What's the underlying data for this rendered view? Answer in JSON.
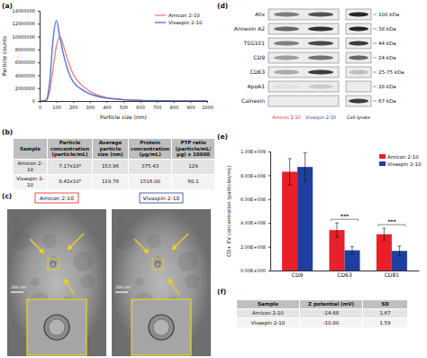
{
  "chart_data": [
    {
      "type": "line",
      "x_label": "Particle size (nm)",
      "y_label": "Particle counts",
      "x": [
        0,
        20,
        40,
        60,
        80,
        100,
        120,
        140,
        160,
        180,
        200,
        250,
        300,
        350,
        400,
        450,
        500,
        600,
        700,
        800,
        900,
        1000
      ],
      "series": [
        {
          "name": "Amicon 2-10",
          "color": "#ef7b7b",
          "values": [
            0,
            0,
            100000,
            1500000,
            5000000,
            8500000,
            10000000,
            8800000,
            7000000,
            5500000,
            4200000,
            2500000,
            1500000,
            900000,
            550000,
            350000,
            220000,
            100000,
            50000,
            20000,
            10000,
            0
          ]
        },
        {
          "name": "Vivaspin 2-10",
          "color": "#4b6fd6",
          "values": [
            0,
            0,
            200000,
            3000000,
            9500000,
            12500000,
            10000000,
            7500000,
            5500000,
            4000000,
            3000000,
            1800000,
            1100000,
            700000,
            450000,
            300000,
            200000,
            100000,
            50000,
            20000,
            10000,
            0
          ]
        }
      ],
      "xlim": [
        0,
        1000
      ],
      "xticks": [
        0,
        100,
        200,
        300,
        400,
        500,
        600,
        700,
        800,
        900,
        1000
      ],
      "ylim": [
        0,
        14000000
      ],
      "yticks": [
        0,
        2000000,
        4000000,
        6000000,
        8000000,
        10000000,
        12000000,
        14000000
      ],
      "legend": "upper right"
    },
    {
      "type": "bar",
      "y_label": "CD+ EV concentration (particles/mL)",
      "categories": [
        "CD9",
        "CD63",
        "CD81"
      ],
      "series": [
        {
          "name": "Amicon 2-10",
          "color": "#e8202a",
          "values": [
            830000000,
            340000000,
            305000000
          ],
          "errors": [
            110000000,
            60000000,
            50000000
          ]
        },
        {
          "name": "Vivaspin 2-10",
          "color": "#1f3fa0",
          "values": [
            870000000,
            170000000,
            165000000
          ],
          "errors": [
            120000000,
            30000000,
            40000000
          ]
        }
      ],
      "ylim": [
        0,
        1000000000
      ],
      "yticks": [
        {
          "value": 0,
          "label": "0.00E+000"
        },
        {
          "value": 200000000,
          "label": "2.00E+008"
        },
        {
          "value": 400000000,
          "label": "4.00E+008"
        },
        {
          "value": 600000000,
          "label": "6.00E+008"
        },
        {
          "value": 800000000,
          "label": "8.00E+008"
        },
        {
          "value": 1000000000,
          "label": "1.00E+009"
        }
      ],
      "legend": "upper right",
      "annotations": [
        {
          "text": "***",
          "category": "CD63"
        },
        {
          "text": "***",
          "category": "CD81"
        }
      ]
    }
  ],
  "panel_labels": {
    "a": "(a)",
    "b": "(b)",
    "c": "(c)",
    "d": "(d)",
    "e": "(e)",
    "f": "(f)"
  },
  "tables": {
    "b": {
      "columns": [
        "Sample",
        "Particle concentration (particle/mL)",
        "Average particle size (nm)",
        "Protein concentration (µg/mL)",
        "PTP ratio (particle/mL/µg) x 10000"
      ],
      "rows": [
        [
          "Amicon 2-10",
          "7.17x10⁸",
          "153.96",
          "375.43",
          "129"
        ],
        [
          "Vivaspin 2-10",
          "8.42x10⁸",
          "119.76",
          "1516.00",
          "60.1"
        ]
      ]
    },
    "f": {
      "columns": [
        "Sample",
        "Z potential (mV)",
        "SD"
      ],
      "rows": [
        [
          "Amicon 2-10",
          "-14.68",
          "1.67"
        ],
        [
          "Vivaspin 2-10",
          "-10.80",
          "1.59"
        ]
      ]
    }
  },
  "images": {
    "captions": [
      "Amicon 2-10",
      "Vivaspin 2-10"
    ],
    "caption_colors": [
      "#e8202a",
      "#1f3fa0"
    ],
    "scale_bars": [
      "200 nm",
      "200 nm"
    ]
  },
  "blot": {
    "proteins": [
      "Alix",
      "Annexin A2",
      "TSG101",
      "CD9",
      "CD63",
      "ApoA1",
      "Calnexin"
    ],
    "sizes": [
      "100 kDa",
      "38 kDa",
      "44 kDa",
      "24 kDa",
      "25-75 kDa",
      "28 kDa",
      "67 kDa"
    ],
    "lanes": [
      "Amicon 2-10",
      "Vivaspin 2-10",
      "Cell lysate"
    ],
    "lane_colors": [
      "#e8202a",
      "#1f3fa0",
      "#000000"
    ],
    "band_intensity": [
      [
        0.5,
        0.7,
        0.9
      ],
      [
        0.6,
        0.85,
        0.9
      ],
      [
        0.5,
        0.75,
        0.8
      ],
      [
        0.35,
        0.55,
        0.6
      ],
      [
        0.3,
        0.8,
        0.2
      ],
      [
        0.05,
        0.15,
        0
      ],
      [
        0,
        0,
        0.8
      ]
    ]
  }
}
